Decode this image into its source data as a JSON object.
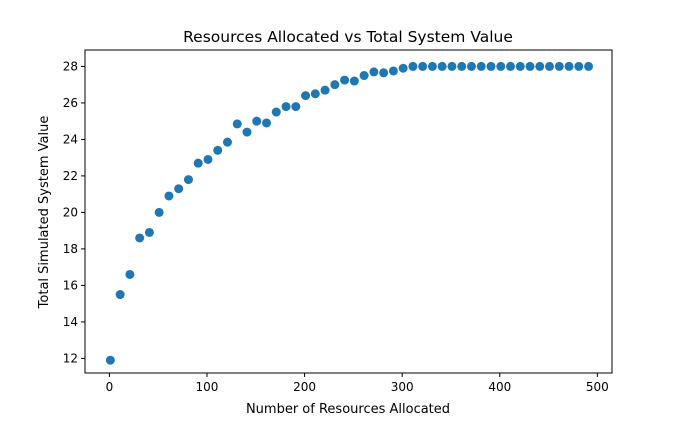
{
  "chart_data": {
    "type": "scatter",
    "title": "Resources Allocated vs Total System Value",
    "xlabel": "Number of Resources Allocated",
    "ylabel": "Total Simulated System Value",
    "xlim": [
      -25,
      515
    ],
    "ylim": [
      11.2,
      28.9
    ],
    "xticks": [
      0,
      100,
      200,
      300,
      400,
      500
    ],
    "yticks": [
      12,
      14,
      16,
      18,
      20,
      22,
      24,
      26,
      28
    ],
    "grid": false,
    "legend": "none",
    "marker_color": "#1f77b4",
    "x": [
      1,
      11,
      21,
      31,
      41,
      51,
      61,
      71,
      81,
      91,
      101,
      111,
      121,
      131,
      141,
      151,
      161,
      171,
      181,
      191,
      201,
      211,
      221,
      231,
      241,
      251,
      261,
      271,
      281,
      291,
      301,
      311,
      321,
      331,
      341,
      351,
      361,
      371,
      381,
      391,
      401,
      411,
      421,
      431,
      441,
      451,
      461,
      471,
      481,
      491
    ],
    "y": [
      11.9,
      15.5,
      16.6,
      18.6,
      18.9,
      20.0,
      20.9,
      21.3,
      21.8,
      22.7,
      22.9,
      23.4,
      23.85,
      24.85,
      24.4,
      25.0,
      24.9,
      25.5,
      25.8,
      25.8,
      26.4,
      26.5,
      26.7,
      27.0,
      27.25,
      27.2,
      27.5,
      27.7,
      27.65,
      27.75,
      27.9,
      28.0,
      28.0,
      28.0,
      28.0,
      28.0,
      28.0,
      28.0,
      28.0,
      28.0,
      28.0,
      28.0,
      28.0,
      28.0,
      28.0,
      28.0,
      28.0,
      28.0,
      28.0,
      28.0
    ]
  }
}
